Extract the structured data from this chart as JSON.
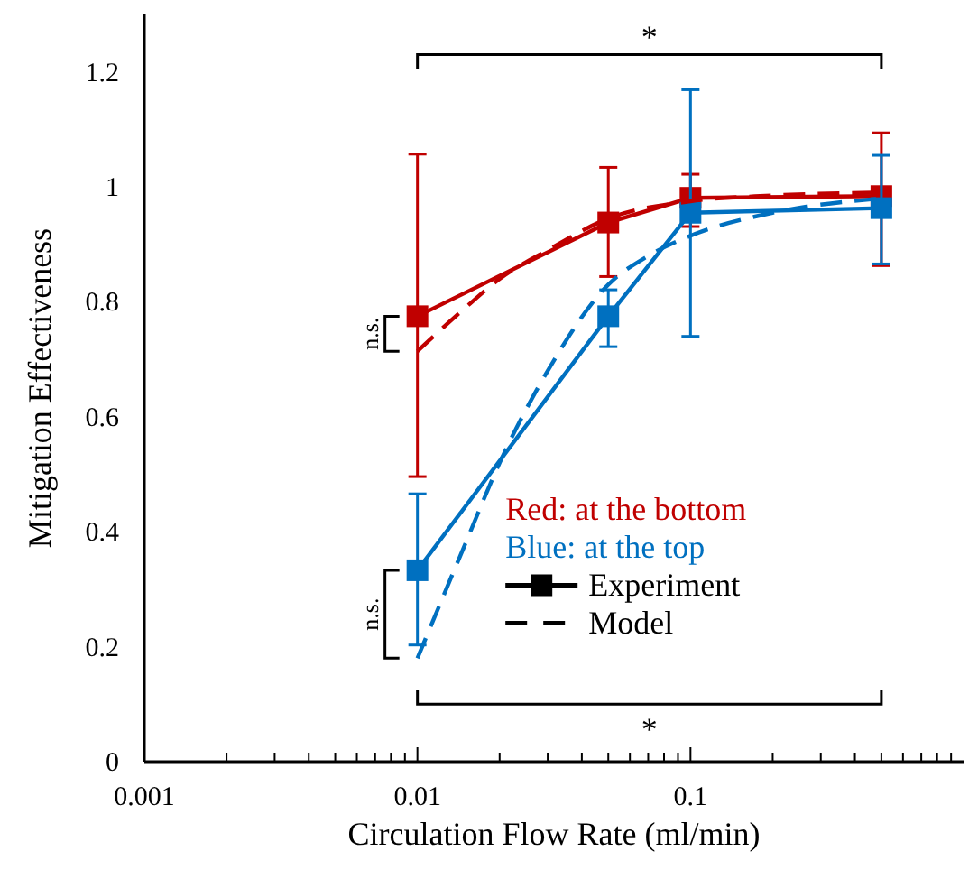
{
  "chart_data": {
    "type": "line",
    "xlabel": "Circulation Flow Rate (ml/min)",
    "ylabel": "Mitigation Effectiveness",
    "log": "x",
    "xlim": [
      0.001,
      1
    ],
    "ylim": [
      0,
      1.3
    ],
    "xticks": [
      0.001,
      {
        "value": 0.002,
        "label": null
      },
      {
        "value": 0.003,
        "label": null
      },
      {
        "value": 0.004,
        "label": null
      },
      {
        "value": 0.005,
        "label": null
      },
      {
        "value": 0.006,
        "label": null
      },
      {
        "value": 0.007,
        "label": null
      },
      {
        "value": 0.008,
        "label": null
      },
      {
        "value": 0.009,
        "label": null
      },
      0.01,
      {
        "value": 0.02,
        "label": null
      },
      {
        "value": 0.03,
        "label": null
      },
      {
        "value": 0.04,
        "label": null
      },
      {
        "value": 0.05,
        "label": null
      },
      {
        "value": 0.06,
        "label": null
      },
      {
        "value": 0.07,
        "label": null
      },
      {
        "value": 0.08,
        "label": null
      },
      {
        "value": 0.09,
        "label": null
      },
      0.1,
      {
        "value": 0.2,
        "label": null
      },
      {
        "value": 0.3,
        "label": null
      },
      {
        "value": 0.4,
        "label": null
      },
      {
        "value": 0.5,
        "label": null
      },
      {
        "value": 0.6,
        "label": null
      },
      {
        "value": 0.7,
        "label": null
      },
      {
        "value": 0.8,
        "label": null
      },
      {
        "value": 0.9,
        "label": null
      }
    ],
    "yticks": [
      0,
      0.2,
      0.4,
      0.6,
      0.8,
      1,
      1.2
    ],
    "grid": false,
    "series": [
      {
        "color": "#c00000",
        "x": [
          0.01,
          0.05,
          0.1,
          0.5
        ],
        "values": [
          0.775,
          0.938,
          0.981,
          0.984
        ],
        "errors": [
          [
            0.496,
            1.057
          ],
          [
            0.844,
            1.034
          ],
          [
            0.931,
            1.022
          ],
          [
            0.863,
            1.094
          ]
        ],
        "marker": "square",
        "line_style": "solid"
      },
      {
        "color": "#0070c0",
        "x": [
          0.01,
          0.05,
          0.1,
          0.5
        ],
        "values": [
          0.333,
          0.775,
          0.955,
          0.963
        ],
        "errors": [
          [
            0.203,
            0.466
          ],
          [
            0.722,
            0.821
          ],
          [
            0.74,
            1.169
          ],
          [
            0.866,
            1.055
          ]
        ],
        "marker": "square",
        "line_style": "solid"
      },
      {
        "color": "#c00000",
        "x": [
          0.01,
          0.015,
          0.02,
          0.03,
          0.05,
          0.1,
          0.2,
          0.5
        ],
        "values": [
          0.714,
          0.79,
          0.84,
          0.89,
          0.945,
          0.975,
          0.985,
          0.99
        ],
        "marker": "none",
        "line_style": "dashed"
      },
      {
        "color": "#0070c0",
        "x": [
          0.01,
          0.015,
          0.02,
          0.03,
          0.05,
          0.07,
          0.1,
          0.2,
          0.5
        ],
        "values": [
          0.18,
          0.38,
          0.52,
          0.68,
          0.83,
          0.88,
          0.915,
          0.955,
          0.98
        ],
        "marker": "none",
        "line_style": "dashed"
      }
    ],
    "annotations": [
      "*",
      "*",
      "n.s.",
      "n.s.",
      "Red: at the bottom",
      "Blue: at the top",
      "Experiment",
      "Model"
    ]
  }
}
